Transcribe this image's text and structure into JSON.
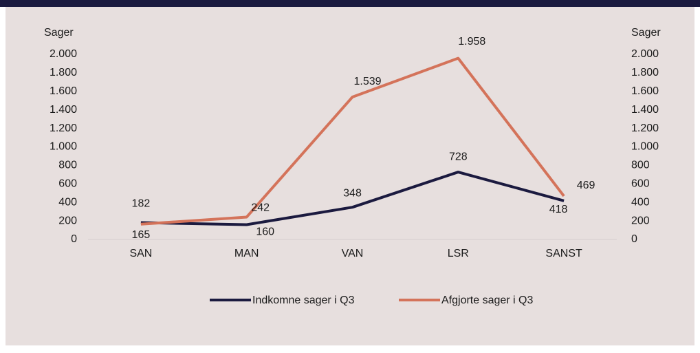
{
  "chart_data": {
    "type": "line",
    "y_label": "Sager",
    "y2_label": "Sager",
    "categories": [
      "SAN",
      "MAN",
      "VAN",
      "LSR",
      "SANST"
    ],
    "series": [
      {
        "name": "Indkomne sager i Q3",
        "color": "#1b1a3f",
        "values": [
          182,
          160,
          348,
          728,
          418
        ]
      },
      {
        "name": "Afgjorte sager i Q3",
        "color": "#d4735a",
        "values": [
          165,
          242,
          1539,
          1958,
          469
        ],
        "value_labels": [
          "165",
          "242",
          "1.539",
          "1.958",
          "469"
        ]
      }
    ],
    "ylim": [
      0,
      2000
    ],
    "yticks": [
      0,
      200,
      400,
      600,
      800,
      {
        "value": 1000,
        "label": "1.000"
      },
      {
        "value": 1200,
        "label": "1.200"
      },
      {
        "value": 1400,
        "label": "1.400"
      },
      {
        "value": 1600,
        "label": "1.600"
      },
      {
        "value": 1800,
        "label": "1.800"
      },
      {
        "value": 2000,
        "label": "2.000"
      }
    ],
    "y2lim": [
      0,
      2000
    ],
    "y2ticks": [
      0,
      200,
      400,
      600,
      800,
      {
        "value": 1000,
        "label": "1.000"
      },
      {
        "value": 1200,
        "label": "1.200"
      },
      {
        "value": 1400,
        "label": "1.400"
      },
      {
        "value": 1600,
        "label": "1.600"
      },
      {
        "value": 1800,
        "label": "1.800"
      },
      {
        "value": 2000,
        "label": "2.000"
      }
    ],
    "grid": false,
    "legend": "bottom"
  }
}
